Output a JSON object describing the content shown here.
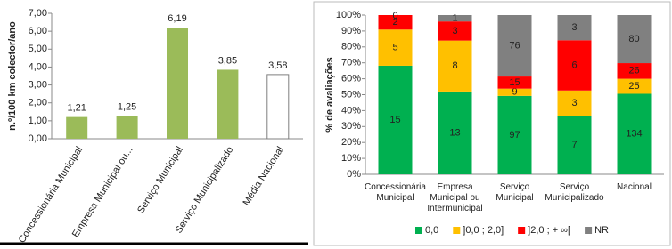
{
  "chart_data": [
    {
      "type": "bar",
      "ylabel": "n.º/100 km colector/ano",
      "categories": [
        "Concessionária Municipal",
        "Empresa Municipal ou...",
        "Serviço Municipal",
        "Serviço Municipalizado",
        "Média Nacional"
      ],
      "values": [
        1.21,
        1.25,
        6.19,
        3.85,
        3.58
      ],
      "value_labels": [
        "1,21",
        "1,25",
        "6,19",
        "3,85",
        "3,58"
      ],
      "colors": [
        "#9bbb59",
        "#9bbb59",
        "#9bbb59",
        "#9bbb59",
        "#ffffff"
      ],
      "ylim": [
        0,
        7
      ],
      "yticks": [
        {
          "value": 0,
          "label": "0,00"
        },
        {
          "value": 1,
          "label": "1,00"
        },
        {
          "value": 2,
          "label": "2,00"
        },
        {
          "value": 3,
          "label": "3,00"
        },
        {
          "value": 4,
          "label": "4,00"
        },
        {
          "value": 5,
          "label": "5,00"
        },
        {
          "value": 6,
          "label": "6,00"
        },
        {
          "value": 7,
          "label": "7,00"
        }
      ]
    },
    {
      "type": "bar",
      "stacked": "percent",
      "ylabel": "% de avaliações",
      "legend": "bottom",
      "categories": [
        "Concessionária Municipal",
        "Empresa Municipal ou Intermunicipal",
        "Serviço Municipal",
        "Serviço Municipalizado",
        "Nacional"
      ],
      "series": [
        {
          "name": "0,0",
          "color": "#00b050",
          "values": [
            15,
            13,
            97,
            7,
            134
          ]
        },
        {
          "name": "]0,0 ; 2,0]",
          "color": "#ffc000",
          "values": [
            5,
            8,
            9,
            3,
            25
          ]
        },
        {
          "name": "]2,0 ; + ∞[",
          "color": "#ff0000",
          "values": [
            2,
            3,
            15,
            6,
            26
          ]
        },
        {
          "name": "NR",
          "color": "#808080",
          "values": [
            0,
            1,
            76,
            3,
            80
          ]
        }
      ],
      "ylim": [
        0,
        100
      ],
      "yticks": [
        {
          "value": 0,
          "label": "0%"
        },
        {
          "value": 10,
          "label": "10%"
        },
        {
          "value": 20,
          "label": "20%"
        },
        {
          "value": 30,
          "label": "30%"
        },
        {
          "value": 40,
          "label": "40%"
        },
        {
          "value": 50,
          "label": "50%"
        },
        {
          "value": 60,
          "label": "60%"
        },
        {
          "value": 70,
          "label": "70%"
        },
        {
          "value": 80,
          "label": "80%"
        },
        {
          "value": 90,
          "label": "90%"
        },
        {
          "value": 100,
          "label": "100%"
        }
      ]
    }
  ]
}
